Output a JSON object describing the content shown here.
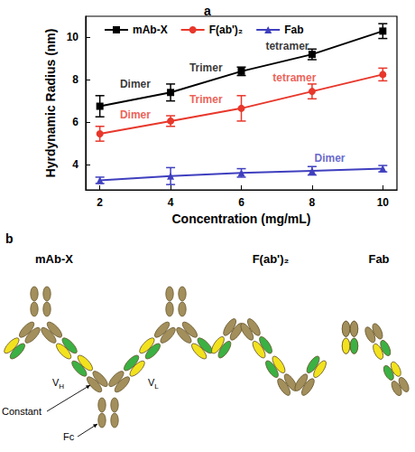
{
  "chart_data": {
    "type": "line",
    "panel_label": "a",
    "x_label": "Concentration (mg/mL)",
    "y_label": "Hyrdynamic Radius (nm)",
    "x": [
      2,
      4,
      6,
      8,
      10
    ],
    "series": [
      {
        "name": "mAb-X",
        "color": "#000000",
        "marker": "square",
        "values": [
          6.75,
          7.4,
          8.4,
          9.2,
          10.3
        ],
        "errors": [
          0.5,
          0.4,
          0.2,
          0.25,
          0.35
        ]
      },
      {
        "name": "F(ab')₂",
        "color": "#e8372b",
        "marker": "circle",
        "values": [
          5.45,
          6.05,
          6.65,
          7.45,
          8.25
        ],
        "errors": [
          0.35,
          0.25,
          0.6,
          0.35,
          0.3
        ]
      },
      {
        "name": "Fab",
        "color": "#3f3fbf",
        "marker": "triangle",
        "values": [
          3.25,
          3.45,
          3.6,
          3.7,
          3.8
        ],
        "errors": [
          0.15,
          0.4,
          0.2,
          0.2,
          0.15
        ]
      }
    ],
    "xlim": [
      1.6,
      10.4
    ],
    "xticks": [
      2,
      4,
      6,
      8,
      10
    ],
    "ylim": [
      2.8,
      11
    ],
    "yticks": [
      4,
      6,
      8,
      10
    ],
    "grid": false,
    "legend": "top",
    "annotations": [
      {
        "text": "Dimer",
        "x": 3.0,
        "y": 7.8,
        "color": "#000000"
      },
      {
        "text": "Trimer",
        "x": 5.0,
        "y": 8.55,
        "color": "#000000"
      },
      {
        "text": "tetramer",
        "x": 7.3,
        "y": 9.6,
        "color": "#000000"
      },
      {
        "text": "Dimer",
        "x": 3.0,
        "y": 6.35,
        "color": "#e8372b"
      },
      {
        "text": "Trimer",
        "x": 5.0,
        "y": 7.05,
        "color": "#e8372b"
      },
      {
        "text": "tetramer",
        "x": 7.5,
        "y": 8.1,
        "color": "#e8372b"
      },
      {
        "text": "Dimer",
        "x": 8.5,
        "y": 4.3,
        "color": "#3f3fbf"
      }
    ]
  },
  "diagram": {
    "panel_label": "b",
    "constructs": [
      "mAb-X",
      "F(ab')₂",
      "Fab"
    ],
    "domain_labels": [
      {
        "text": "V",
        "sub": "H"
      },
      {
        "text": "V",
        "sub": "L"
      },
      {
        "text": "Constant"
      },
      {
        "text": "Fc"
      }
    ]
  }
}
